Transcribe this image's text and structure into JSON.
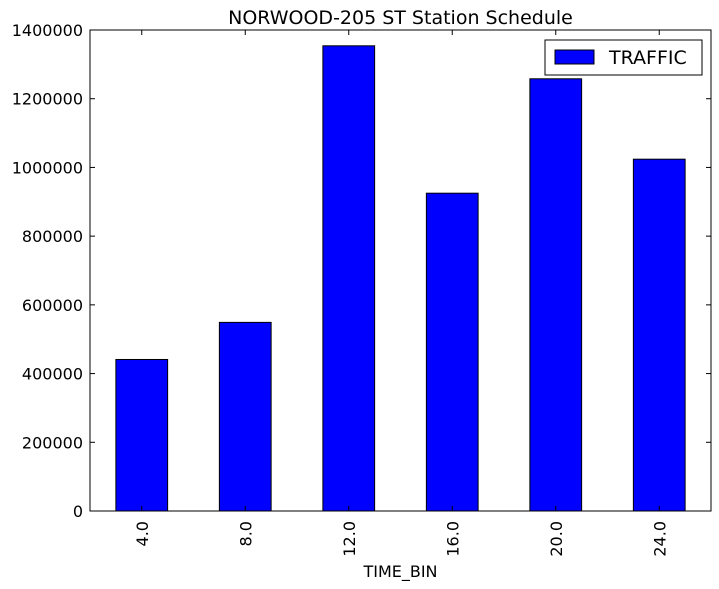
{
  "chart_data": {
    "type": "bar",
    "title": "NORWOOD-205 ST Station Schedule",
    "xlabel": "TIME_BIN",
    "ylabel": "",
    "categories": [
      "4.0",
      "8.0",
      "12.0",
      "16.0",
      "20.0",
      "24.0"
    ],
    "series": [
      {
        "name": "TRAFFIC",
        "color": "#0000ff",
        "values": [
          441000,
          549000,
          1354000,
          925000,
          1258000,
          1024000
        ]
      }
    ],
    "ylim": [
      0,
      1400000
    ],
    "yticks": [
      0,
      200000,
      400000,
      600000,
      800000,
      1000000,
      1200000,
      1400000
    ],
    "ytick_labels": [
      "0",
      "200000",
      "400000",
      "600000",
      "800000",
      "1000000",
      "1200000",
      "1400000"
    ],
    "legend_position": "top-right",
    "grid": false
  }
}
